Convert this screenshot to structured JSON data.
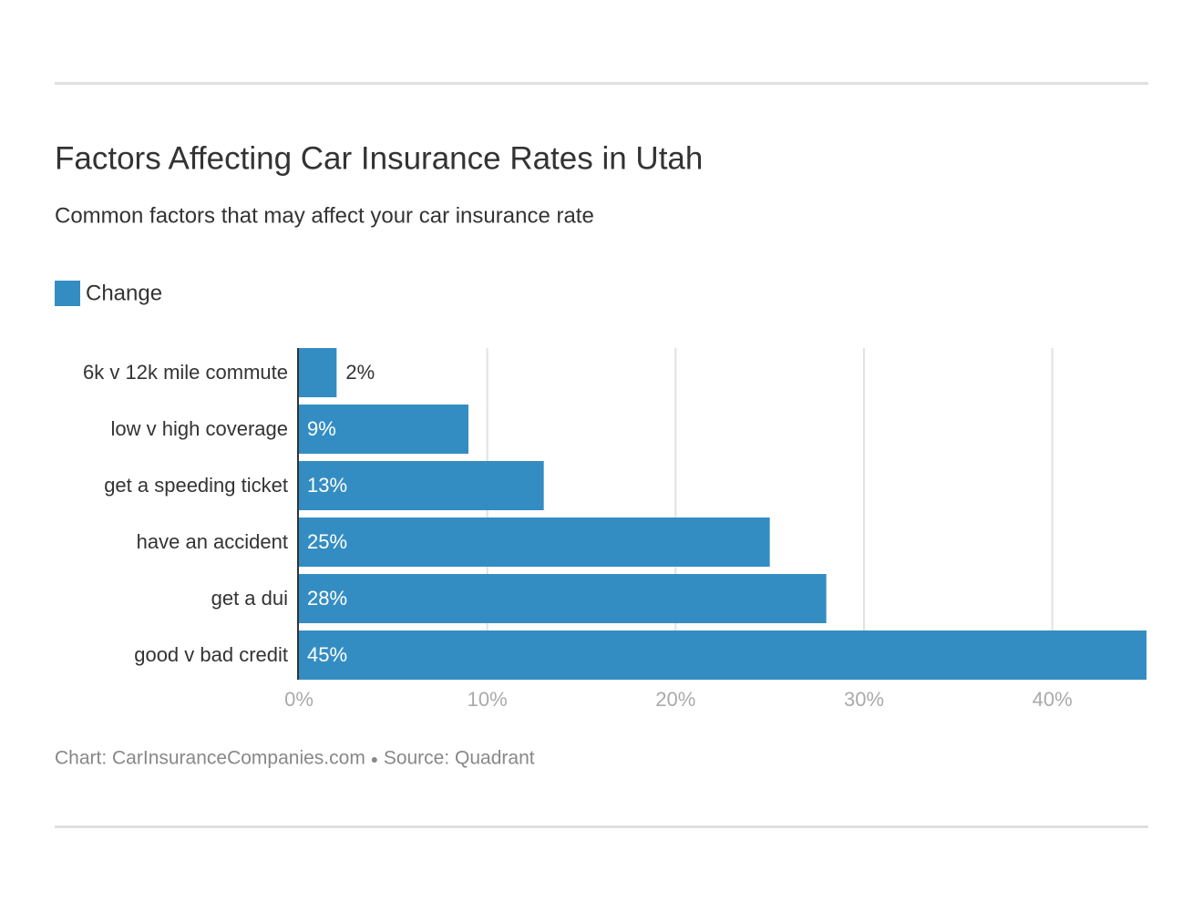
{
  "chart_data": {
    "type": "bar",
    "orientation": "horizontal",
    "title": "Factors Affecting Car Insurance Rates in Utah",
    "subtitle": "Common factors that may affect your car insurance rate",
    "categories": [
      "6k v 12k mile commute",
      "low v high coverage",
      "get a speeding ticket",
      "have an accident",
      "get a dui",
      "good v bad credit"
    ],
    "series": [
      {
        "name": "Change",
        "color": "#348dc2",
        "values": [
          2,
          9,
          13,
          25,
          28,
          45
        ],
        "value_labels": [
          "2%",
          "9%",
          "13%",
          "25%",
          "28%",
          "45%"
        ]
      }
    ],
    "xlim": [
      0,
      45
    ],
    "xticks": [
      {
        "value": 0,
        "label": "0%"
      },
      {
        "value": 10,
        "label": "10%"
      },
      {
        "value": 20,
        "label": "20%"
      },
      {
        "value": 30,
        "label": "30%"
      },
      {
        "value": 40,
        "label": "40%"
      }
    ],
    "grid": true,
    "legend": "top-left",
    "credit": "Chart: CarInsuranceCompanies.com",
    "source": "Source: Quadrant"
  }
}
